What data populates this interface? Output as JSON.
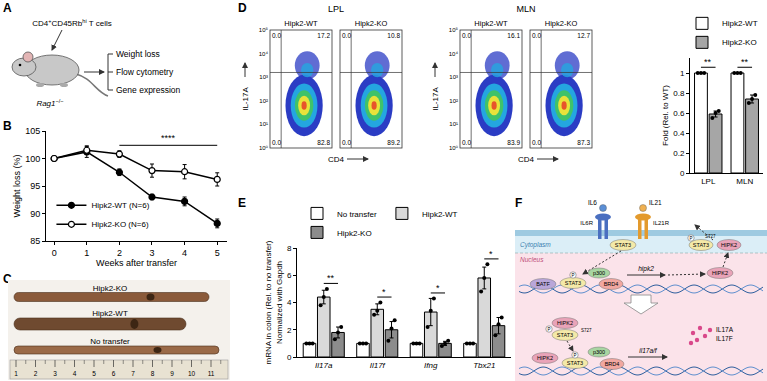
{
  "chart_data": [
    {
      "type": "line",
      "x": [
        0,
        1,
        2,
        3,
        4,
        5
      ],
      "xlim": [
        -0.25,
        5.3
      ],
      "xticks": [
        0,
        1,
        2,
        3,
        4,
        5
      ],
      "ylim": [
        85,
        105
      ],
      "yticks": [
        85,
        90,
        95,
        100,
        105
      ],
      "xlabel": "Weeks after transfer",
      "ylabel": "Weight loss (%)",
      "legend": "bottom left",
      "grid": false,
      "series": [
        {
          "name": "Hipk2-WT (N=6)",
          "color": "#000000",
          "marker": "filled circle",
          "values": [
            100,
            101.2,
            97.5,
            93,
            92.2,
            88.2
          ],
          "error": [
            0,
            1.0,
            0.6,
            0.5,
            0.8,
            0.8
          ]
        },
        {
          "name": "Hipk2-KO (N=6)",
          "color": "#000000",
          "marker": "open circle",
          "values": [
            100,
            101.5,
            100.8,
            97.8,
            97.6,
            96.2
          ],
          "error": [
            0,
            0.8,
            0.6,
            1.2,
            1.3,
            1.2
          ]
        }
      ],
      "annotations": [
        {
          "text": "****",
          "from": 2,
          "to": 5
        }
      ]
    },
    {
      "type": "bar",
      "categories": [
        "LPL",
        "MLN"
      ],
      "ylabel": "Fold (Rel. to WT)",
      "ylim": [
        0,
        1.15
      ],
      "yticks": [
        0,
        0.2,
        0.4,
        0.6,
        0.8,
        1
      ],
      "legend": "top right",
      "grid": false,
      "series": [
        {
          "name": "Hipk2-WT",
          "color": "#ffffff",
          "values": [
            1,
            1
          ],
          "error": [
            0,
            0
          ],
          "points": [
            [
              1,
              1,
              1
            ],
            [
              1,
              1,
              1
            ]
          ]
        },
        {
          "name": "Hipk2-KO",
          "color": "#a6a6a6",
          "values": [
            0.59,
            0.74
          ],
          "error": [
            0.03,
            0.04
          ],
          "points": [
            [
              0.55,
              0.6,
              0.62
            ],
            [
              0.7,
              0.74,
              0.78
            ]
          ]
        }
      ],
      "annotations": [
        {
          "text": "**",
          "category": "LPL",
          "from": "Hipk2-WT",
          "to": "Hipk2-KO"
        },
        {
          "text": "**",
          "category": "MLN",
          "from": "Hipk2-WT",
          "to": "Hipk2-KO"
        }
      ]
    },
    {
      "type": "bar",
      "categories": [
        "Il17a",
        "Il17f",
        "Ifng",
        "Tbx21"
      ],
      "ylabel": [
        "mRNA in colon (Rel. to no transfer)",
        "Normalized with Gapdh"
      ],
      "ylim": [
        0,
        8
      ],
      "yticks": [
        0,
        2,
        4,
        6,
        8
      ],
      "legend": "top left",
      "grid": false,
      "series": [
        {
          "name": "No transfer",
          "color": "#ffffff",
          "values": [
            1,
            1,
            1,
            1
          ],
          "error": [
            0,
            0,
            0,
            0
          ],
          "points": [
            [
              1,
              1,
              1
            ],
            [
              1,
              1,
              1
            ],
            [
              1,
              1,
              1
            ],
            [
              1,
              1,
              1
            ]
          ]
        },
        {
          "name": "Hipk2-WT",
          "color": "#d9d9d9",
          "values": [
            4.4,
            3.5,
            3.3,
            5.8
          ],
          "error": [
            0.5,
            0.4,
            1.0,
            0.8
          ],
          "points": [
            [
              3.8,
              4.4,
              5.0
            ],
            [
              3.1,
              3.4,
              4.0
            ],
            [
              2.2,
              3.4,
              4.3
            ],
            [
              4.8,
              5.8,
              6.8
            ]
          ]
        },
        {
          "name": "Hipk2-KO",
          "color": "#8c8c8c",
          "values": [
            1.8,
            2.0,
            1.0,
            2.3
          ],
          "error": [
            0.4,
            0.6,
            0.15,
            0.6
          ],
          "points": [
            [
              1.3,
              1.8,
              2.2
            ],
            [
              1.2,
              2.1,
              2.7
            ],
            [
              0.8,
              1.0,
              1.2
            ],
            [
              1.6,
              2.4,
              2.9
            ]
          ]
        }
      ],
      "annotations": [
        {
          "text": "**",
          "category": "Il17a",
          "from": "Hipk2-WT",
          "to": "Hipk2-KO"
        },
        {
          "text": "*",
          "category": "Il17f",
          "from": "Hipk2-WT",
          "to": "Hipk2-KO"
        },
        {
          "text": "*",
          "category": "Ifng",
          "from": "Hipk2-WT",
          "to": "Hipk2-KO"
        },
        {
          "text": "*",
          "category": "Tbx21",
          "from": "Hipk2-WT",
          "to": "Hipk2-KO"
        }
      ]
    }
  ],
  "figure": {
    "panel_labels": [
      "A",
      "B",
      "C",
      "D",
      "E",
      "F"
    ],
    "A": {
      "cells": [
        {
          "t": "CD4"
        },
        {
          "t": "+",
          "sup": true
        },
        {
          "t": "CD45Rb"
        },
        {
          "t": "hi",
          "sup": true
        },
        {
          "t": " T cells"
        }
      ],
      "host": [
        {
          "t": "Rag1",
          "italic": true
        },
        {
          "t": "−/−",
          "sup": true
        }
      ],
      "readouts": [
        "Weight loss",
        "Flow cytometry",
        "Gene expression"
      ]
    },
    "C": {
      "samples": [
        "Hipk2-KO",
        "Hipk2-WT",
        "No transfer"
      ],
      "ruler": [
        "1",
        "2",
        "3",
        "4",
        "5",
        "6",
        "7",
        "8",
        "9",
        "10",
        "11"
      ]
    },
    "D": {
      "groups": [
        {
          "title": "LPL",
          "plots": [
            {
              "title": "Hipk2-WT",
              "quadrants": [
                "0.0",
                "17.2",
                "0.0",
                "82.8"
              ]
            },
            {
              "title": "Hipk2-KO",
              "quadrants": [
                "0.0",
                "10.8",
                "0.0",
                "89.2"
              ]
            }
          ]
        },
        {
          "title": "MLN",
          "plots": [
            {
              "title": "Hipk2-WT",
              "quadrants": [
                "0.0",
                "16.1",
                "0.0",
                "83.9"
              ]
            },
            {
              "title": "Hipk2-KO",
              "quadrants": [
                "0.0",
                "12.7",
                "0.0",
                "87.3"
              ]
            }
          ]
        }
      ],
      "ylabel": "IL-17A",
      "xlabel": "CD4",
      "yticks": [
        "10⁰",
        "10¹",
        "10²",
        "10³",
        "10⁴",
        "10⁵"
      ]
    },
    "F": {
      "ligands": [
        "IL6",
        "IL21"
      ],
      "receptors": [
        "IL6R",
        "IL21R"
      ],
      "compartments": [
        "Cytoplasm",
        "Nucleus"
      ],
      "proteins": {
        "stat3": "STAT3",
        "hipk2": "HIPK2",
        "batf": "BATF",
        "p300": "p300",
        "brd4": "BRD4"
      },
      "phospho": "P",
      "site": "S727",
      "genes": [
        "hipk2",
        "il17a/f"
      ],
      "products": [
        "IL17A",
        "IL17F"
      ]
    }
  }
}
